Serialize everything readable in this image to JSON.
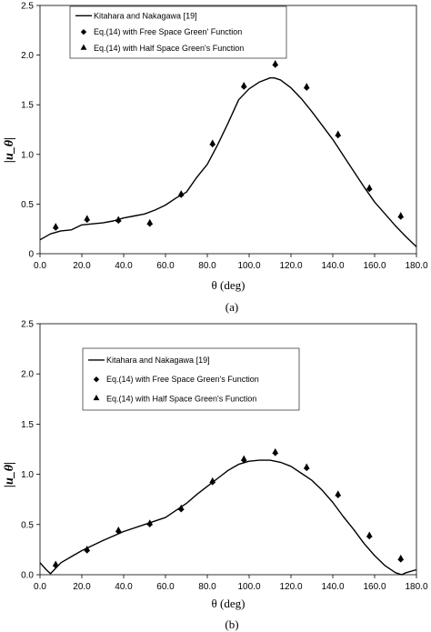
{
  "chart_data": [
    {
      "type": "line",
      "caption": "(a)",
      "xlabel": "θ (deg)",
      "ylabel": "|u_θ|",
      "xlim": [
        0,
        180
      ],
      "ylim": [
        0,
        2.5
      ],
      "xticks": [
        "0.0",
        "20.0",
        "40.0",
        "60.0",
        "80.0",
        "100.0",
        "120.0",
        "140.0",
        "160.0",
        "180.0"
      ],
      "yticks": [
        "0",
        "0.5",
        "1.0",
        "1.5",
        "2.0",
        "2.5"
      ],
      "grid": false,
      "legend_position": "top-left",
      "legend": [
        "Kitahara and Nakagawa [19]",
        "Eq.(14) with Free Space Green' Function",
        "Eq.(14) with Half Space Green's Function"
      ],
      "series": [
        {
          "name": "Kitahara and Nakagawa [19]",
          "kind": "line",
          "x": [
            0,
            5,
            10,
            15,
            20,
            25,
            30,
            35,
            40,
            45,
            50,
            55,
            60,
            65,
            70,
            75,
            80,
            85,
            90,
            95,
            100,
            105,
            110,
            112,
            115,
            120,
            125,
            130,
            135,
            140,
            145,
            150,
            155,
            160,
            165,
            170,
            175,
            180
          ],
          "y": [
            0.14,
            0.2,
            0.23,
            0.24,
            0.29,
            0.3,
            0.31,
            0.33,
            0.36,
            0.38,
            0.4,
            0.44,
            0.49,
            0.56,
            0.62,
            0.77,
            0.9,
            1.1,
            1.32,
            1.55,
            1.66,
            1.73,
            1.77,
            1.77,
            1.75,
            1.67,
            1.56,
            1.43,
            1.29,
            1.15,
            0.99,
            0.83,
            0.67,
            0.52,
            0.4,
            0.28,
            0.17,
            0.07
          ]
        },
        {
          "name": "Eq.(14) with Free Space Green' Function",
          "kind": "diamond",
          "x": [
            7.5,
            22.5,
            37.5,
            52.5,
            67.5,
            82.5,
            97.5,
            112.5,
            127.5,
            142.5,
            157.5,
            172.5
          ],
          "y": [
            0.26,
            0.34,
            0.33,
            0.3,
            0.59,
            1.1,
            1.68,
            1.9,
            1.67,
            1.19,
            0.65,
            0.37
          ]
        },
        {
          "name": "Eq.(14) with Half Space Green's Function",
          "kind": "triangle",
          "x": [
            7.5,
            22.5,
            37.5,
            52.5,
            67.5,
            82.5,
            97.5,
            112.5,
            127.5,
            142.5,
            157.5,
            172.5
          ],
          "y": [
            0.27,
            0.35,
            0.34,
            0.31,
            0.6,
            1.11,
            1.69,
            1.91,
            1.68,
            1.2,
            0.66,
            0.38
          ]
        }
      ]
    },
    {
      "type": "line",
      "caption": "(b)",
      "xlabel": "θ (deg)",
      "ylabel": "|u_θ|",
      "xlim": [
        0,
        180
      ],
      "ylim": [
        0,
        2.5
      ],
      "xticks": [
        "0.0",
        "20.0",
        "40.0",
        "60.0",
        "80.0",
        "100.0",
        "120.0",
        "140.0",
        "160.0",
        "180.0"
      ],
      "yticks": [
        "0.0",
        "0.5",
        "1.0",
        "1.5",
        "2.0",
        "2.5"
      ],
      "grid": false,
      "legend_position": "top-left",
      "legend": [
        "Kitahara and Nakagawa [19]",
        "Eq.(14) with Free Space Green's Function",
        "Eq.(14) with Half Space Green's Function"
      ],
      "series": [
        {
          "name": "Kitahara and Nakagawa [19]",
          "kind": "line",
          "x": [
            0,
            3,
            5,
            10,
            15,
            20,
            25,
            30,
            40,
            50,
            60,
            65,
            70,
            75,
            80,
            85,
            90,
            95,
            100,
            105,
            110,
            115,
            120,
            125,
            130,
            135,
            140,
            145,
            150,
            155,
            160,
            165,
            170,
            173,
            175,
            180
          ],
          "y": [
            0.12,
            0.05,
            0.01,
            0.12,
            0.18,
            0.24,
            0.29,
            0.34,
            0.43,
            0.5,
            0.57,
            0.64,
            0.71,
            0.8,
            0.88,
            0.96,
            1.04,
            1.1,
            1.13,
            1.14,
            1.14,
            1.12,
            1.08,
            1.01,
            0.94,
            0.84,
            0.72,
            0.58,
            0.45,
            0.31,
            0.19,
            0.09,
            0.02,
            0.0,
            0.02,
            0.05
          ]
        },
        {
          "name": "Eq.(14) with Free Space Green's Function",
          "kind": "diamond",
          "x": [
            7.5,
            22.5,
            37.5,
            52.5,
            67.5,
            82.5,
            97.5,
            112.5,
            127.5,
            142.5,
            157.5,
            172.5
          ],
          "y": [
            0.09,
            0.24,
            0.43,
            0.5,
            0.65,
            0.92,
            1.14,
            1.21,
            1.06,
            0.79,
            0.38,
            0.15
          ]
        },
        {
          "name": "Eq.(14) with Half Space Green's Function",
          "kind": "triangle",
          "x": [
            7.5,
            22.5,
            37.5,
            52.5,
            67.5,
            82.5,
            97.5,
            112.5,
            127.5,
            142.5,
            157.5,
            172.5
          ],
          "y": [
            0.1,
            0.25,
            0.44,
            0.51,
            0.66,
            0.93,
            1.15,
            1.22,
            1.07,
            0.8,
            0.39,
            0.16
          ]
        }
      ]
    }
  ]
}
